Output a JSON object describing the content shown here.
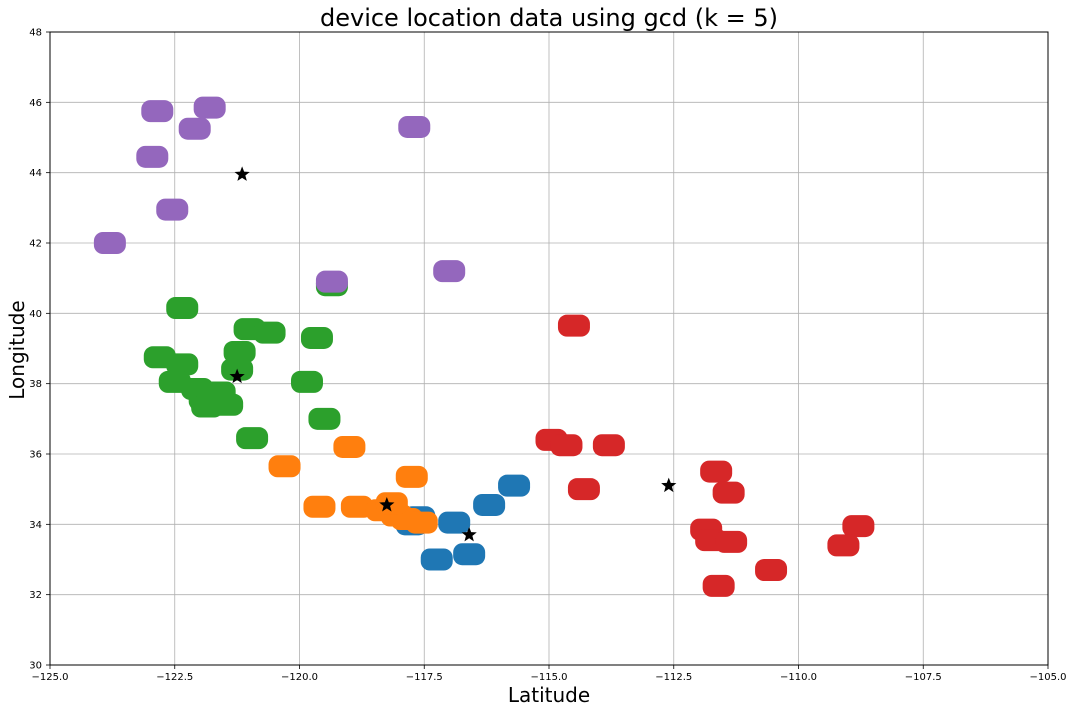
{
  "chart_data": {
    "type": "scatter",
    "title": "device location data using gcd (k = 5)",
    "xlabel": "Latitude",
    "ylabel": "Longitude",
    "xlim": [
      -125.0,
      -105.0
    ],
    "ylim": [
      30,
      48
    ],
    "xticks": [
      "−125.0",
      "−122.5",
      "−120.0",
      "−117.5",
      "−115.0",
      "−112.5",
      "−110.0",
      "−107.5",
      "−105.0"
    ],
    "xtick_values": [
      -125.0,
      -122.5,
      -120.0,
      -117.5,
      -115.0,
      -112.5,
      -110.0,
      -107.5,
      -105.0
    ],
    "yticks": [
      "30",
      "32",
      "34",
      "36",
      "38",
      "40",
      "42",
      "44",
      "46",
      "48"
    ],
    "ytick_values": [
      30,
      32,
      34,
      36,
      38,
      40,
      42,
      44,
      46,
      48
    ],
    "grid": true,
    "series": [
      {
        "color": "#1f77b4",
        "points": [
          [
            -115.7,
            35.1
          ],
          [
            -116.2,
            34.55
          ],
          [
            -116.9,
            34.05
          ],
          [
            -116.6,
            33.15
          ],
          [
            -117.25,
            33.0
          ],
          [
            -117.6,
            34.2
          ],
          [
            -117.75,
            34.0
          ]
        ]
      },
      {
        "color": "#ff7f0e",
        "points": [
          [
            -120.3,
            35.65
          ],
          [
            -119.6,
            34.5
          ],
          [
            -119.0,
            36.2
          ],
          [
            -118.85,
            34.5
          ],
          [
            -118.35,
            34.4
          ],
          [
            -118.05,
            34.25
          ],
          [
            -117.85,
            34.15
          ],
          [
            -117.75,
            35.35
          ],
          [
            -117.55,
            34.05
          ],
          [
            -118.15,
            34.6
          ]
        ]
      },
      {
        "color": "#2ca02c",
        "points": [
          [
            -122.35,
            40.15
          ],
          [
            -122.8,
            38.75
          ],
          [
            -122.35,
            38.55
          ],
          [
            -122.5,
            38.05
          ],
          [
            -122.05,
            37.85
          ],
          [
            -121.9,
            37.55
          ],
          [
            -121.6,
            37.75
          ],
          [
            -121.85,
            37.35
          ],
          [
            -121.45,
            37.4
          ],
          [
            -121.2,
            38.9
          ],
          [
            -121.25,
            38.4
          ],
          [
            -121.0,
            39.55
          ],
          [
            -120.6,
            39.45
          ],
          [
            -120.95,
            36.45
          ],
          [
            -119.85,
            38.05
          ],
          [
            -119.65,
            39.3
          ],
          [
            -119.5,
            37.0
          ],
          [
            -119.35,
            40.8
          ]
        ]
      },
      {
        "color": "#d62728",
        "points": [
          [
            -114.95,
            36.4
          ],
          [
            -114.65,
            36.25
          ],
          [
            -114.5,
            39.65
          ],
          [
            -114.3,
            35.0
          ],
          [
            -113.8,
            36.25
          ],
          [
            -111.85,
            33.85
          ],
          [
            -111.75,
            33.55
          ],
          [
            -111.65,
            35.5
          ],
          [
            -111.6,
            32.25
          ],
          [
            -111.4,
            34.9
          ],
          [
            -111.35,
            33.5
          ],
          [
            -110.55,
            32.7
          ],
          [
            -108.8,
            33.95
          ],
          [
            -109.1,
            33.4
          ]
        ]
      },
      {
        "color": "#9467bd",
        "points": [
          [
            -123.8,
            42.0
          ],
          [
            -122.85,
            45.75
          ],
          [
            -122.95,
            44.45
          ],
          [
            -122.55,
            42.95
          ],
          [
            -122.1,
            45.25
          ],
          [
            -121.8,
            45.85
          ],
          [
            -117.7,
            45.3
          ],
          [
            -117.0,
            41.2
          ],
          [
            -119.35,
            40.9
          ]
        ]
      }
    ],
    "centroids": [
      [
        -121.25,
        38.2
      ],
      [
        -121.15,
        43.95
      ],
      [
        -118.25,
        34.55
      ],
      [
        -116.6,
        33.7
      ],
      [
        -112.6,
        35.1
      ]
    ]
  }
}
